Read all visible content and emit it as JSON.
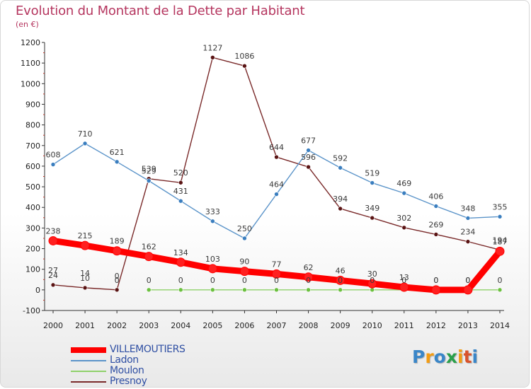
{
  "header": {
    "title": "Evolution du Montant de la Dette par Habitant",
    "subtitle": "(en €)"
  },
  "logo": {
    "letters": [
      "P",
      "r",
      "o",
      "x",
      "i",
      "t",
      "i"
    ],
    "colors": [
      "#3a86c8",
      "#f39c12",
      "#3a86c8",
      "#2aa04a",
      "#f39c12",
      "#d9532b",
      "#3a86c8"
    ]
  },
  "chart_data": {
    "type": "line",
    "title": "Evolution du Montant de la Dette par Habitant",
    "subtitle": "(en €)",
    "xlabel": "",
    "ylabel": "",
    "x": [
      "2000",
      "2001",
      "2002",
      "2003",
      "2004",
      "2005",
      "2006",
      "2007",
      "2008",
      "2009",
      "2010",
      "2011",
      "2012",
      "2013",
      "2014"
    ],
    "ylim": [
      -100,
      1200
    ],
    "yticks": [
      "-100",
      "0",
      "100",
      "200",
      "300",
      "400",
      "500",
      "600",
      "700",
      "800",
      "900",
      "1000",
      "1100",
      "1200"
    ],
    "grid": false,
    "legend_position": "bottom-left",
    "series": [
      {
        "name": "Presnoy",
        "color": "#7a2a2a",
        "marker": "#5a1414",
        "values": [
          24,
          10,
          0,
          539,
          520,
          1127,
          1086,
          644,
          596,
          394,
          349,
          302,
          269,
          234,
          194
        ],
        "labels": [
          "24",
          "10",
          "0",
          "539",
          "520",
          "1127",
          "1086",
          "644",
          "596",
          "394",
          "349",
          "302",
          "269",
          "234",
          "194"
        ]
      },
      {
        "name": "Ladon",
        "color": "#5b94c9",
        "marker": "#3a7ebf",
        "values": [
          608,
          710,
          621,
          529,
          431,
          333,
          250,
          464,
          677,
          592,
          519,
          469,
          406,
          348,
          355
        ],
        "labels": [
          "608",
          "710",
          "621",
          "529",
          "431",
          "333",
          "250",
          "464",
          "677",
          "592",
          "519",
          "469",
          "406",
          "348",
          "355"
        ]
      },
      {
        "name": "Moulon",
        "color": "#8fd16a",
        "marker": "#6cc040",
        "values": [
          null,
          null,
          null,
          0,
          0,
          0,
          0,
          0,
          0,
          0,
          0,
          0,
          0,
          0,
          0
        ],
        "labels": [
          "",
          "",
          "",
          "0",
          "0",
          "0",
          "0",
          "0",
          "0",
          "0",
          "0",
          "0",
          "0",
          "0",
          "0"
        ]
      },
      {
        "name": "VILLEMOUTIERS",
        "color": "#ff0000",
        "marker": "#ff2020",
        "values": [
          238,
          215,
          189,
          162,
          134,
          103,
          90,
          77,
          62,
          46,
          30,
          13,
          0,
          0,
          187
        ],
        "labels": [
          "238",
          "215",
          "189",
          "162",
          "134",
          "103",
          "90",
          "77",
          "62",
          "46",
          "30",
          "13",
          "0",
          "0",
          "187"
        ]
      }
    ],
    "extra_labels": [
      {
        "x": "2000",
        "text": "27",
        "value": 27
      },
      {
        "x": "2001",
        "text": "14",
        "value": 14
      },
      {
        "x": "2002",
        "text": "0",
        "value": 0
      }
    ]
  },
  "legend": {
    "items": [
      {
        "label": "VILLEMOUTIERS",
        "color": "#ff0000",
        "thick": true
      },
      {
        "label": "Ladon",
        "color": "#5b94c9",
        "thick": false
      },
      {
        "label": "Moulon",
        "color": "#8fd16a",
        "thick": false
      },
      {
        "label": "Presnoy",
        "color": "#7a2a2a",
        "thick": false
      }
    ]
  }
}
